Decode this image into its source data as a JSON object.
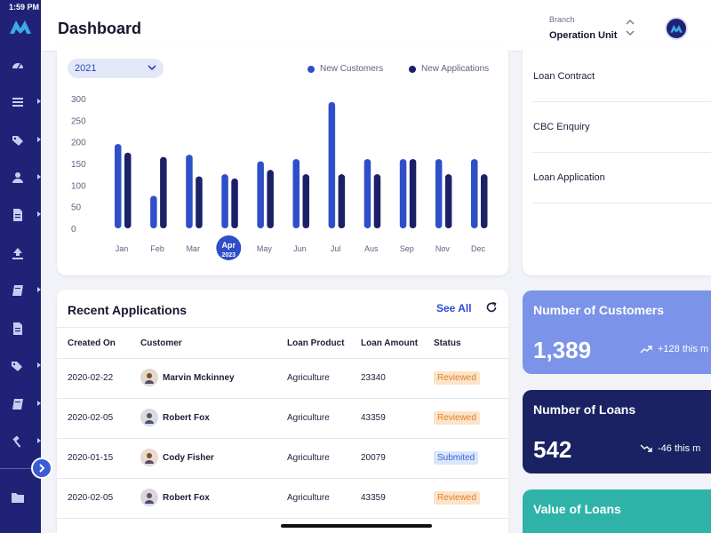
{
  "status_bar": {
    "time": "1:59 PM"
  },
  "header": {
    "title": "Dashboard",
    "branch_label": "Branch",
    "branch_value": "Operation Unit"
  },
  "sidebar": {
    "items": [
      {
        "icon": "gauge-icon",
        "has_caret": false
      },
      {
        "icon": "list-icon",
        "has_caret": true
      },
      {
        "icon": "tag-icon",
        "has_caret": true
      },
      {
        "icon": "user-icon",
        "has_caret": true
      },
      {
        "icon": "document-icon",
        "has_caret": true
      },
      {
        "icon": "upload-icon",
        "has_caret": false
      },
      {
        "icon": "book-icon",
        "has_caret": true
      },
      {
        "icon": "file-icon",
        "has_caret": false
      },
      {
        "icon": "tags-icon",
        "has_caret": true
      },
      {
        "icon": "book-icon",
        "has_caret": true
      },
      {
        "icon": "gavel-icon",
        "has_caret": true
      },
      {
        "icon": "folder-icon",
        "has_caret": false
      }
    ]
  },
  "chart": {
    "year": "2021",
    "legend_a": "New Customers",
    "legend_b": "New Applications"
  },
  "chart_data": {
    "type": "bar",
    "categories": [
      "Jan",
      "Feb",
      "Mar",
      "Apr",
      "May",
      "Jun",
      "Jul",
      "Aus",
      "Sep",
      "Nov",
      "Dec"
    ],
    "selected_category": {
      "label": "Apr",
      "sub": "2023"
    },
    "series": [
      {
        "name": "New Customers",
        "color": "#2f4fc9",
        "values": [
          195,
          75,
          170,
          125,
          155,
          160,
          292,
          160,
          160,
          160,
          160
        ]
      },
      {
        "name": "New Applications",
        "color": "#1b2168",
        "values": [
          175,
          165,
          120,
          115,
          135,
          125,
          125,
          125,
          160,
          125,
          125
        ]
      }
    ],
    "ylim": [
      0,
      300
    ],
    "yticks": [
      0,
      50,
      100,
      150,
      200,
      250,
      300
    ],
    "grid": false
  },
  "links": [
    {
      "label": "Loan Contract"
    },
    {
      "label": "CBC Enquiry"
    },
    {
      "label": "Loan Application"
    }
  ],
  "recent": {
    "title": "Recent Applications",
    "see_all": "See All",
    "columns": [
      "Created On",
      "Customer",
      "Loan Product",
      "Loan Amount",
      "Status"
    ],
    "rows": [
      {
        "created": "2020-02-22",
        "customer": "Marvin Mckinney",
        "product": "Agriculture",
        "amount": "23340",
        "status": "Reviewed"
      },
      {
        "created": "2020-02-05",
        "customer": "Robert Fox",
        "product": "Agriculture",
        "amount": "43359",
        "status": "Reviewed"
      },
      {
        "created": "2020-01-15",
        "customer": "Cody Fisher",
        "product": "Agriculture",
        "amount": "20079",
        "status": "Submited"
      },
      {
        "created": "2020-02-05",
        "customer": "Robert Fox",
        "product": "Agriculture",
        "amount": "43359",
        "status": "Reviewed"
      }
    ]
  },
  "stats": {
    "customers": {
      "title": "Number of Customers",
      "value": "1,389",
      "trend": "+128 this m"
    },
    "loans": {
      "title": "Number of Loans",
      "value": "542",
      "trend": "-46 this m"
    },
    "value_loans": {
      "title": "Value of Loans"
    }
  },
  "colors": {
    "sidebar": "#1f2277",
    "accent": "#2f4fc9",
    "reviewed": "#d9822b",
    "submited": "#3a63d8"
  }
}
